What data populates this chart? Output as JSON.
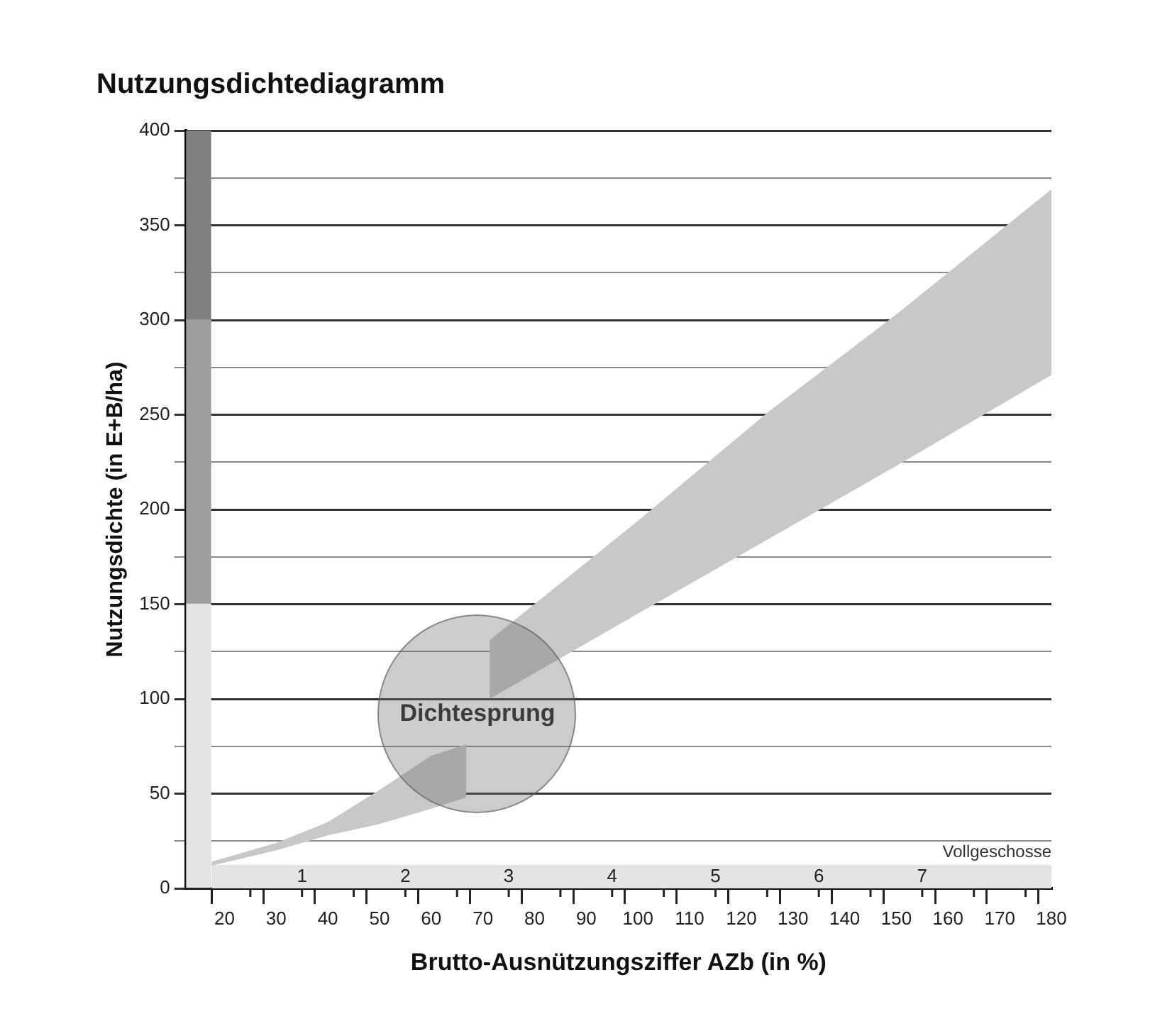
{
  "chart_data": {
    "type": "line",
    "title": "Nutzungsdichtediagramm",
    "xlabel": "Brutto-Ausnützungsziffer AZb (in %)",
    "ylabel": "Nutzungsdichte (in E+B/ha)",
    "xlim": [
      12.5,
      180
    ],
    "xticks": [
      20,
      {
        "value": 25,
        "label": null
      },
      30,
      {
        "value": 35,
        "label": null
      },
      40,
      {
        "value": 45,
        "label": null
      },
      50,
      {
        "value": 55,
        "label": null
      },
      60,
      {
        "value": 65,
        "label": null
      },
      70,
      {
        "value": 75,
        "label": null
      },
      80,
      {
        "value": 85,
        "label": null
      },
      90,
      {
        "value": 95,
        "label": null
      },
      100,
      {
        "value": 105,
        "label": null
      },
      110,
      {
        "value": 115,
        "label": null
      },
      120,
      {
        "value": 125,
        "label": null
      },
      130,
      {
        "value": 135,
        "label": null
      },
      140,
      {
        "value": 145,
        "label": null
      },
      150,
      {
        "value": 155,
        "label": null
      },
      160,
      {
        "value": 165,
        "label": null
      },
      170,
      {
        "value": 175,
        "label": null
      },
      180
    ],
    "ylim": [
      0,
      400
    ],
    "yticks": [
      0,
      {
        "value": 25,
        "label": null
      },
      50,
      {
        "value": 75,
        "label": null
      },
      100,
      {
        "value": 125,
        "label": null
      },
      150,
      {
        "value": 175,
        "label": null
      },
      200,
      {
        "value": 225,
        "label": null
      },
      250,
      {
        "value": 275,
        "label": null
      },
      300,
      {
        "value": 325,
        "label": null
      },
      350,
      {
        "value": 375,
        "label": null
      },
      400
    ],
    "grid": "y",
    "series": [
      {
        "type": "area",
        "x": [
          17.5,
          180
        ],
        "values": [
          12,
          12
        ],
        "color": "#e4e4e4"
      },
      {
        "type": "bar",
        "x": [
          15
        ],
        "values": [
          150
        ],
        "base": [
          0
        ],
        "color": "#e4e4e4"
      },
      {
        "type": "bar",
        "x": [
          15
        ],
        "values": [
          150
        ],
        "base": [
          150
        ],
        "color": "#9e9e9e"
      },
      {
        "type": "bar",
        "x": [
          15
        ],
        "values": [
          100
        ],
        "base": [
          300
        ],
        "color": "#808080"
      },
      {
        "x": [
          17.5,
          30,
          40,
          50,
          60,
          66.8
        ],
        "values": [
          null,
          null,
          null,
          null,
          null,
          null
        ],
        "upper": [
          14,
          24,
          35,
          52,
          70,
          76
        ],
        "lower": [
          12,
          20,
          28,
          34,
          42,
          48
        ],
        "color": "#c8c8c8"
      },
      {
        "x": [
          71.3,
          100,
          125,
          150,
          180
        ],
        "values": [
          null,
          null,
          null,
          null,
          null
        ],
        "upper": [
          131,
          194,
          251,
          303,
          369
        ],
        "lower": [
          100,
          145,
          184,
          223,
          271
        ],
        "color": "#c8c8c8"
      }
    ],
    "annotations": [
      "Dichtesprung",
      "1",
      "2",
      "3",
      "4",
      "5",
      "6",
      "7",
      "Vollgeschosse"
    ]
  }
}
